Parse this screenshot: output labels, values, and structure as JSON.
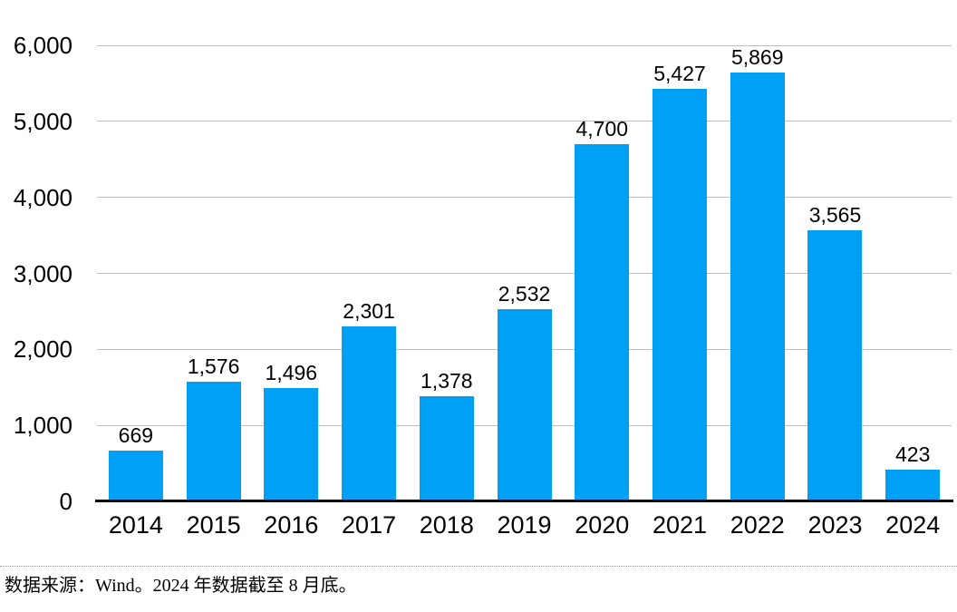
{
  "chart_data": {
    "type": "bar",
    "title": "",
    "xlabel": "",
    "ylabel": "",
    "categories": [
      "2014",
      "2015",
      "2016",
      "2017",
      "2018",
      "2019",
      "2020",
      "2021",
      "2022",
      "2023",
      "2024"
    ],
    "values": [
      669,
      1576,
      1496,
      2301,
      1378,
      2532,
      4700,
      5427,
      5869,
      3565,
      423
    ],
    "value_labels": [
      "669",
      "1,576",
      "1,496",
      "2,301",
      "1,378",
      "2,532",
      "4,700",
      "5,427",
      "5,869",
      "3,565",
      "423"
    ],
    "ylim": [
      0,
      6000
    ],
    "yticks": [
      0,
      1000,
      2000,
      3000,
      4000,
      5000,
      6000
    ],
    "ytick_labels": [
      "0",
      "1,000",
      "2,000",
      "3,000",
      "4,000",
      "5,000",
      "6,000"
    ],
    "grid": "horizontal",
    "legend": "none",
    "bar_color": "#00a0f5"
  },
  "colors": {
    "bar": "#00a0f5",
    "gridline": "#bfbfbf",
    "axis_line": "#000000",
    "text": "#000000",
    "divider": "#999999"
  },
  "footer": {
    "source_note": "数据来源：Wind。2024 年数据截至 8 月底。"
  }
}
